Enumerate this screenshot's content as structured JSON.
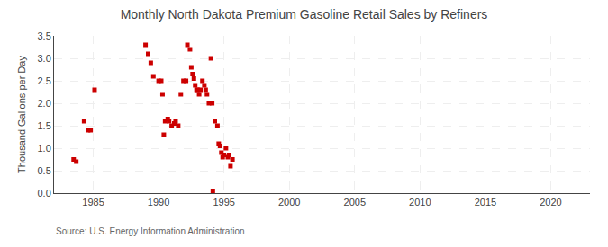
{
  "chart_data": {
    "type": "scatter",
    "title": "Monthly North Dakota Premium Gasoline Retail Sales by Refiners",
    "y_label": "Thousand Gallons per Day",
    "source": "Source: U.S. Energy Information Administration",
    "x": [
      1983.5,
      1983.7,
      1984.3,
      1984.6,
      1984.8,
      1985.1,
      1989.0,
      1989.2,
      1989.4,
      1989.6,
      1990.0,
      1990.2,
      1990.3,
      1990.4,
      1990.5,
      1990.7,
      1990.8,
      1991.0,
      1991.2,
      1991.3,
      1991.5,
      1991.7,
      1991.9,
      1992.1,
      1992.2,
      1992.4,
      1992.5,
      1992.6,
      1992.7,
      1992.8,
      1992.9,
      1993.0,
      1993.1,
      1993.2,
      1993.35,
      1993.5,
      1993.6,
      1993.7,
      1993.85,
      1994.0,
      1994.1,
      1994.15,
      1994.3,
      1994.5,
      1994.6,
      1994.7,
      1994.8,
      1994.9,
      1995.0,
      1995.15,
      1995.3,
      1995.4,
      1995.5,
      1995.65
    ],
    "values": [
      0.75,
      0.7,
      1.6,
      1.4,
      1.4,
      2.3,
      3.3,
      3.1,
      2.9,
      2.6,
      2.5,
      2.5,
      2.2,
      1.3,
      1.6,
      1.65,
      1.6,
      1.5,
      1.55,
      1.6,
      1.5,
      2.2,
      2.5,
      2.5,
      3.3,
      3.2,
      2.8,
      2.65,
      2.55,
      2.4,
      2.3,
      2.3,
      2.2,
      2.3,
      2.5,
      2.4,
      2.3,
      2.2,
      2.0,
      3.0,
      2.0,
      0.05,
      1.6,
      1.5,
      1.1,
      1.05,
      0.9,
      0.8,
      0.85,
      1.0,
      0.8,
      0.85,
      0.6,
      0.75
    ],
    "color": "#cc0000",
    "marker": "square",
    "xlim": [
      1982,
      2023
    ],
    "xticks": [
      1985,
      1990,
      1995,
      2000,
      2005,
      2010,
      2015,
      2020
    ],
    "ylim": [
      0.0,
      3.5
    ],
    "yticks": [
      {
        "value": 0.0,
        "label": "0.0"
      },
      0.5,
      {
        "value": 1.0,
        "label": "1.0"
      },
      1.5,
      {
        "value": 2.0,
        "label": "2.0"
      },
      2.5,
      {
        "value": 3.0,
        "label": "3.0"
      },
      3.5
    ],
    "grid": true
  }
}
